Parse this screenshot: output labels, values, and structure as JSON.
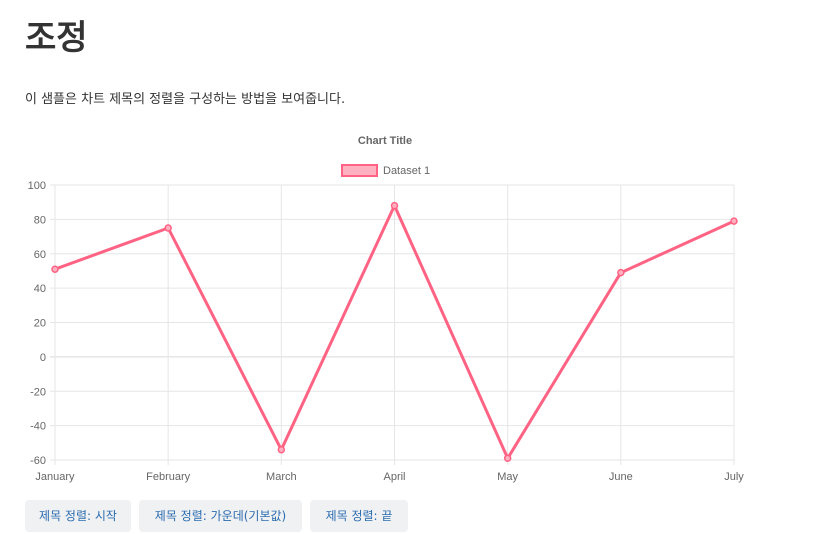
{
  "page": {
    "title": "조정",
    "description": "이 샘플은 차트 제목의 정렬을 구성하는 방법을 보여줍니다."
  },
  "buttons": [
    {
      "label": "제목 정렬: 시작"
    },
    {
      "label": "제목 정렬: 가운데(기본값)"
    },
    {
      "label": "제목 정렬: 끝"
    }
  ],
  "colors": {
    "series_line": "#ff6384",
    "series_fill": "#ffb1c1",
    "grid": "#e6e6e6",
    "tick_text": "#666666",
    "button_text": "#2b6cb0",
    "button_bg": "#f0f1f3"
  },
  "chart_data": {
    "type": "line",
    "title": "Chart Title",
    "title_align": "center",
    "categories": [
      "January",
      "February",
      "March",
      "April",
      "May",
      "June",
      "July"
    ],
    "series": [
      {
        "name": "Dataset 1",
        "values": [
          51,
          75,
          -54,
          88,
          -59,
          49,
          79
        ]
      }
    ],
    "ylim": [
      -60,
      100
    ],
    "y_ticks": [
      100,
      80,
      60,
      40,
      20,
      0,
      -20,
      -40,
      -60
    ],
    "xlabel": "",
    "ylabel": "",
    "grid": true,
    "legend_position": "top"
  }
}
